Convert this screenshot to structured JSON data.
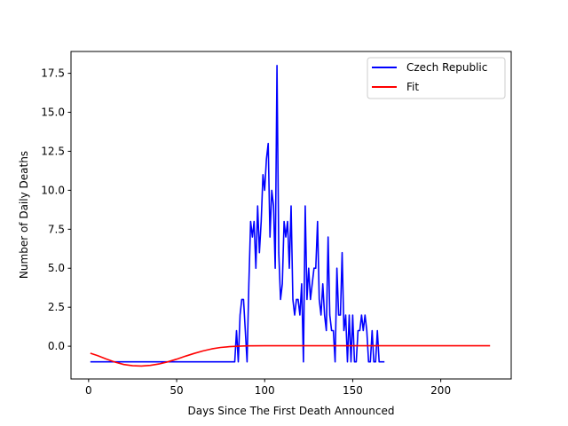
{
  "chart_data": {
    "type": "line",
    "title": "",
    "xlabel": "Days Since The First Death Announced",
    "ylabel": "Number of Daily Deaths",
    "xlim": [
      -10,
      240
    ],
    "ylim": [
      -2.1,
      18.9
    ],
    "xticks": [
      0,
      50,
      100,
      150,
      200
    ],
    "xtick_labels": [
      "0",
      "50",
      "100",
      "150",
      "200"
    ],
    "yticks": [
      0.0,
      2.5,
      5.0,
      7.5,
      10.0,
      12.5,
      15.0,
      17.5
    ],
    "ytick_labels": [
      "0.0",
      "2.5",
      "5.0",
      "7.5",
      "10.0",
      "12.5",
      "15.0",
      "17.5"
    ],
    "grid": false,
    "legend_position": "top-right",
    "series": [
      {
        "name": "Czech Republic",
        "color": "#0000ff",
        "x": [
          1,
          83,
          84,
          85,
          86,
          87,
          88,
          89,
          90,
          91,
          92,
          93,
          94,
          95,
          96,
          97,
          98,
          99,
          100,
          101,
          102,
          103,
          104,
          105,
          106,
          107,
          108,
          109,
          110,
          111,
          112,
          113,
          114,
          115,
          116,
          117,
          118,
          119,
          120,
          121,
          122,
          123,
          124,
          125,
          126,
          127,
          128,
          129,
          130,
          131,
          132,
          133,
          134,
          135,
          136,
          137,
          138,
          139,
          140,
          141,
          142,
          143,
          144,
          145,
          146,
          147,
          148,
          149,
          150,
          151,
          152,
          153,
          154,
          155,
          156,
          157,
          158,
          159,
          160,
          161,
          162,
          163,
          164,
          165,
          166,
          167,
          168
        ],
        "values": [
          -1,
          -1,
          1,
          -1,
          2,
          3,
          3,
          1,
          -1,
          4,
          8,
          7,
          8,
          5,
          9,
          6,
          8,
          11,
          10,
          12,
          13,
          7,
          10,
          9,
          5,
          18,
          6,
          3,
          4,
          8,
          7,
          8,
          5,
          9,
          3,
          2,
          3,
          3,
          2,
          4,
          -1,
          9,
          3,
          5,
          3,
          4,
          5,
          5,
          8,
          3,
          2,
          4,
          2,
          1,
          7,
          2,
          1,
          1,
          -1,
          5,
          2,
          2,
          6,
          1,
          2,
          -1,
          2,
          -1,
          2,
          -1,
          -1,
          1,
          1,
          2,
          1,
          2,
          1,
          -1,
          -1,
          1,
          -1,
          -1,
          1,
          -1,
          -1,
          -1,
          -1
        ]
      },
      {
        "name": "Fit",
        "color": "#ff0000",
        "x": [
          1,
          5,
          10,
          15,
          20,
          25,
          30,
          35,
          40,
          45,
          50,
          55,
          60,
          65,
          70,
          75,
          80,
          85,
          90,
          100,
          110,
          120,
          140,
          160,
          180,
          200,
          228
        ],
        "values": [
          -0.45,
          -0.6,
          -0.82,
          -1.02,
          -1.17,
          -1.25,
          -1.27,
          -1.23,
          -1.14,
          -1.0,
          -0.83,
          -0.64,
          -0.46,
          -0.3,
          -0.17,
          -0.08,
          -0.03,
          0.0,
          0.02,
          0.03,
          0.03,
          0.03,
          0.03,
          0.03,
          0.03,
          0.03,
          0.03
        ]
      }
    ]
  }
}
